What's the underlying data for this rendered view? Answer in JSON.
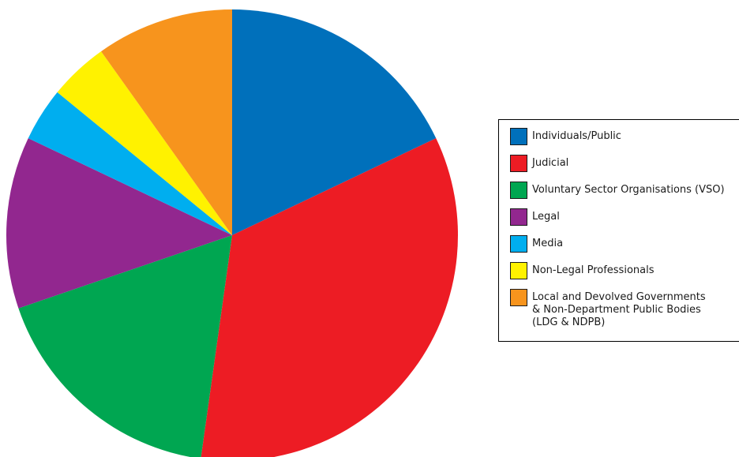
{
  "chart_data": {
    "type": "pie",
    "title": "",
    "slices": [
      {
        "label": "Individuals/Public",
        "value": 18.2,
        "color": "#0070bb"
      },
      {
        "label": "Judicial",
        "value": 34.8,
        "color": "#ed1c24"
      },
      {
        "label": "Voluntary Sector Organisations (VSO)",
        "value": 17.8,
        "color": "#00a651"
      },
      {
        "label": "Legal",
        "value": 12.5,
        "color": "#92278f"
      },
      {
        "label": "Media",
        "value": 3.9,
        "color": "#00aeef"
      },
      {
        "label": "Non-Legal Professionals",
        "value": 4.3,
        "color": "#fff200"
      },
      {
        "label": "Local and Devolved Governments\n& Non-Department Public Bodies\n(LDG & NDPB)",
        "value": 10.0,
        "color": "#f7941d"
      }
    ],
    "start_angle_deg": 0,
    "direction": "clockwise",
    "legend_position": "right"
  }
}
